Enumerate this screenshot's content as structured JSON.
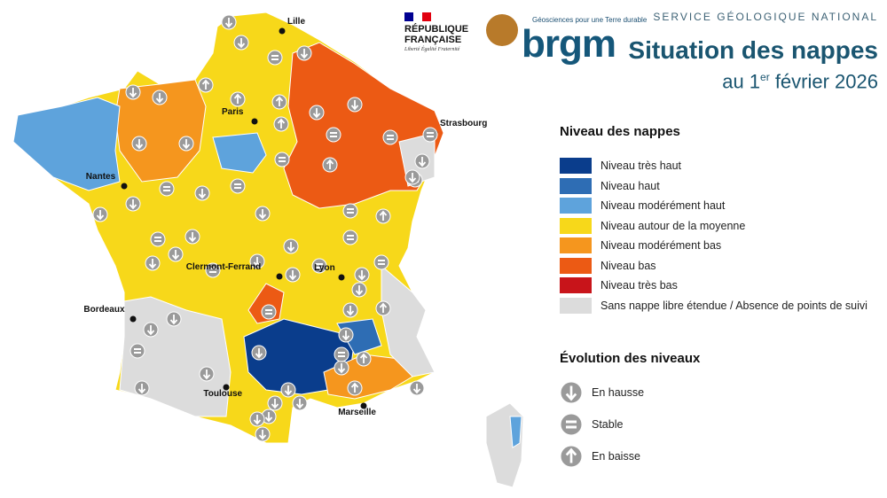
{
  "header": {
    "republique": "RÉPUBLIQUE FRANÇAISE",
    "motto": "Liberté Égalité Fraternité",
    "brgm_tagline": "Géosciences pour une Terre durable",
    "brgm": "brgm",
    "service": "SERVICE GÉOLOGIQUE NATIONAL",
    "title": "Situation des nappes",
    "subtitle_pre": "au 1",
    "subtitle_sup": "er",
    "subtitle_post": " février 2026"
  },
  "legend": {
    "title": "Niveau des nappes",
    "items": [
      {
        "label": "Niveau très haut",
        "color": "#0a3d8c"
      },
      {
        "label": "Niveau haut",
        "color": "#2e6db4"
      },
      {
        "label": "Niveau modérément haut",
        "color": "#5ea3dc"
      },
      {
        "label": "Niveau autour de la moyenne",
        "color": "#f7d81a"
      },
      {
        "label": "Niveau modérément bas",
        "color": "#f5961e"
      },
      {
        "label": "Niveau bas",
        "color": "#ec5a14"
      },
      {
        "label": "Niveau très bas",
        "color": "#c8141a"
      },
      {
        "label": "Sans nappe libre étendue / Absence de points de suivi",
        "color": "#dcdcdc"
      }
    ]
  },
  "evolution": {
    "title": "Évolution des niveaux",
    "items": [
      {
        "label": "En hausse",
        "type": "up"
      },
      {
        "label": "Stable",
        "type": "stable"
      },
      {
        "label": "En baisse",
        "type": "down"
      }
    ]
  },
  "cities": [
    "Lille",
    "Paris",
    "Strasbourg",
    "Nantes",
    "Lyon",
    "Clermont-Ferrand",
    "Bordeaux",
    "Toulouse",
    "Marseille"
  ],
  "markers": [
    "up",
    "up",
    "stable",
    "up",
    "down",
    "up",
    "up",
    "down",
    "down",
    "up",
    "stable",
    "stable",
    "up",
    "down",
    "up",
    "up",
    "stable",
    "down",
    "stable",
    "up",
    "stable",
    "up",
    "up",
    "stable",
    "up",
    "stable",
    "up",
    "stable",
    "down",
    "stable",
    "up",
    "up",
    "stable",
    "up",
    "up",
    "stable",
    "up",
    "stable",
    "stable",
    "up",
    "up",
    "up",
    "down",
    "stable",
    "up",
    "up",
    "stable",
    "up",
    "down",
    "up",
    "up",
    "up",
    "up",
    "up",
    "up",
    "up",
    "up",
    "up",
    "up",
    "down",
    "stable",
    "up",
    "up",
    "up"
  ]
}
